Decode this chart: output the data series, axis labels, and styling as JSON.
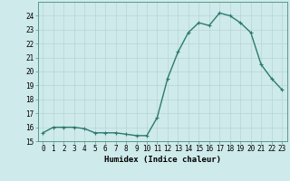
{
  "x": [
    0,
    1,
    2,
    3,
    4,
    5,
    6,
    7,
    8,
    9,
    10,
    11,
    12,
    13,
    14,
    15,
    16,
    17,
    18,
    19,
    20,
    21,
    22,
    23
  ],
  "y": [
    15.6,
    16.0,
    16.0,
    16.0,
    15.9,
    15.6,
    15.6,
    15.6,
    15.5,
    15.4,
    15.4,
    16.7,
    19.5,
    21.4,
    22.8,
    23.5,
    23.3,
    24.2,
    24.0,
    23.5,
    22.8,
    20.5,
    19.5,
    18.7
  ],
  "line_color": "#2d7a6e",
  "marker": "+",
  "bg_color": "#ceeaea",
  "grid_color": "#b8d5d5",
  "xlabel": "Humidex (Indice chaleur)",
  "ylim": [
    15,
    25
  ],
  "xlim_min": -0.5,
  "xlim_max": 23.5,
  "yticks": [
    15,
    16,
    17,
    18,
    19,
    20,
    21,
    22,
    23,
    24
  ],
  "xticks": [
    0,
    1,
    2,
    3,
    4,
    5,
    6,
    7,
    8,
    9,
    10,
    11,
    12,
    13,
    14,
    15,
    16,
    17,
    18,
    19,
    20,
    21,
    22,
    23
  ],
  "tick_fontsize": 5.5,
  "xlabel_fontsize": 6.5,
  "marker_size": 3,
  "line_width": 1.0
}
